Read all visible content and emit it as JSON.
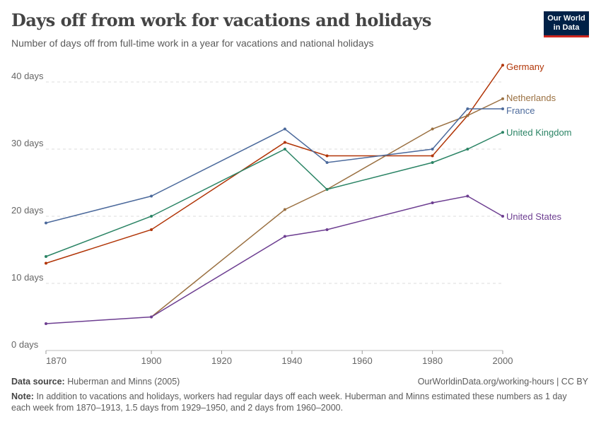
{
  "header": {
    "title": "Days off from work for vacations and holidays",
    "subtitle": "Number of days off from full-time work in a year for vacations and national holidays",
    "logo": "Our World in Data"
  },
  "chart_data": {
    "type": "line",
    "title": "Days off from work for vacations and holidays",
    "subtitle": "Number of days off from full-time work in a year for vacations and national holidays",
    "xlim": [
      1870,
      2000
    ],
    "ylim": [
      0,
      40
    ],
    "xticks": [
      1870,
      1900,
      1920,
      1940,
      1960,
      1980,
      2000
    ],
    "yticks": [
      {
        "v": 0,
        "label": "0 days"
      },
      {
        "v": 10,
        "label": "10 days"
      },
      {
        "v": 20,
        "label": "20 days"
      },
      {
        "v": 30,
        "label": "30 days"
      },
      {
        "v": 40,
        "label": "40 days"
      }
    ],
    "grid": "horizontal dashed",
    "legend": "line-end labels right",
    "series": [
      {
        "name": "Germany",
        "color": "#b13507",
        "x": [
          1870,
          1900,
          1938,
          1950,
          1980,
          1990,
          2000
        ],
        "y": [
          13,
          18,
          31,
          29,
          29,
          35,
          42.5
        ]
      },
      {
        "name": "Netherlands",
        "color": "#9a7041",
        "x": [
          1900,
          1938,
          1950,
          1980,
          1990,
          2000
        ],
        "y": [
          5,
          21,
          24,
          33,
          35,
          37.5
        ]
      },
      {
        "name": "France",
        "color": "#4c6a9c",
        "x": [
          1870,
          1900,
          1938,
          1950,
          1980,
          1990,
          2000
        ],
        "y": [
          19,
          23,
          33,
          28,
          30,
          36,
          36
        ]
      },
      {
        "name": "United Kingdom",
        "color": "#2b8465",
        "x": [
          1870,
          1900,
          1938,
          1950,
          1980,
          1990,
          2000
        ],
        "y": [
          14,
          20,
          30,
          24,
          28,
          30,
          32.5
        ]
      },
      {
        "name": "United States",
        "color": "#6d3e91",
        "x": [
          1870,
          1900,
          1938,
          1950,
          1980,
          1990,
          2000
        ],
        "y": [
          4,
          5,
          17,
          18,
          22,
          23,
          20
        ]
      }
    ]
  },
  "footer": {
    "source_label": "Data source:",
    "source": "Huberman and Minns (2005)",
    "url": "OurWorldinData.org/working-hours | CC BY",
    "note_label": "Note:",
    "note": "In addition to vacations and holidays, workers had regular days off each week. Huberman and Minns estimated these numbers as 1 day each week from 1870–1913, 1.5 days from 1929–1950, and 2 days from 1960–2000."
  }
}
